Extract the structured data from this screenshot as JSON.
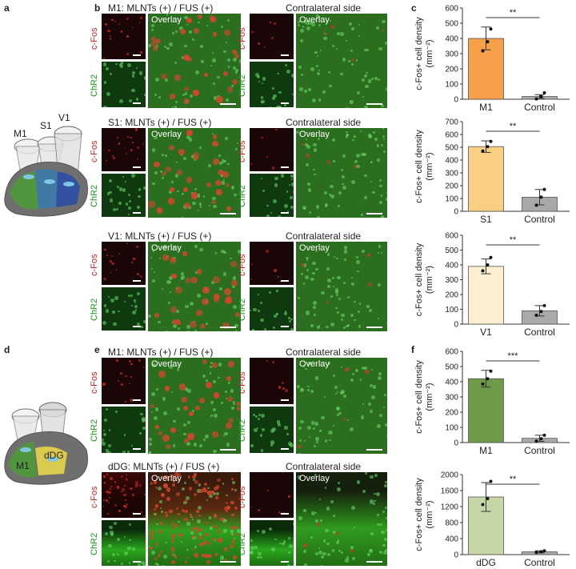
{
  "panel_letters": {
    "a": "a",
    "b": "b",
    "c": "c",
    "d": "d",
    "e": "e",
    "f": "f"
  },
  "brain_labels": {
    "m1": "M1",
    "s1": "S1",
    "v1": "V1",
    "m1_d": "M1",
    "ddg": "dDG"
  },
  "rows": [
    {
      "title": "M1: MLNTs (+) / FUS (+)",
      "contra": "Contralateral side"
    },
    {
      "title": "S1: MLNTs (+) / FUS (+)",
      "contra": "Contralateral side"
    },
    {
      "title": "V1: MLNTs (+) / FUS (+)",
      "contra": "Contralateral side"
    },
    {
      "title": "M1: MLNTs (+) / FUS (+)",
      "contra": "Contralateral side"
    },
    {
      "title": "dDG: MLNTs (+) / FUS (+)",
      "contra": "Contralateral side"
    }
  ],
  "tile_labels": {
    "cfos": "c-Fos",
    "chr2": "ChR2",
    "overlay": "Overlay"
  },
  "colors": {
    "m1": "#f6a04a",
    "s1": "#f9cf84",
    "v1": "#fdf0d2",
    "m1_d": "#6e9a4a",
    "ddg": "#c6d6a6",
    "control": "#a9a9a9"
  },
  "chart_data": [
    {
      "type": "bar",
      "ylabel": "c-Fos+ cell density (mm⁻²)",
      "categories": [
        "M1",
        "Control"
      ],
      "values": [
        400,
        18
      ],
      "errors": [
        75,
        12
      ],
      "ylim": [
        0,
        600
      ],
      "yticks": [
        0,
        100,
        200,
        300,
        400,
        500,
        600
      ],
      "significance": "**",
      "points": [
        [
          318,
          378,
          462
        ],
        [
          2,
          18,
          42
        ]
      ]
    },
    {
      "type": "bar",
      "ylabel": "c-Fos+ cell density (mm⁻²)",
      "categories": [
        "S1",
        "Control"
      ],
      "values": [
        505,
        110
      ],
      "errors": [
        45,
        60
      ],
      "ylim": [
        0,
        700
      ],
      "yticks": [
        0,
        100,
        200,
        300,
        400,
        500,
        600,
        700
      ],
      "significance": "**",
      "points": [
        [
          470,
          505,
          545
        ],
        [
          48,
          110,
          170
        ]
      ]
    },
    {
      "type": "bar",
      "ylabel": "c-Fos+ cell density (mm⁻²)",
      "categories": [
        "V1",
        "Control"
      ],
      "values": [
        390,
        90
      ],
      "errors": [
        50,
        35
      ],
      "ylim": [
        0,
        600
      ],
      "yticks": [
        0,
        100,
        200,
        300,
        400,
        500,
        600
      ],
      "significance": "**",
      "points": [
        [
          360,
          400,
          450
        ],
        [
          60,
          85,
          125
        ]
      ]
    },
    {
      "type": "bar",
      "ylabel": "c-Fos+ cell density (mm⁻²)",
      "categories": [
        "M1",
        "Control"
      ],
      "values": [
        420,
        28
      ],
      "errors": [
        55,
        20
      ],
      "ylim": [
        0,
        600
      ],
      "yticks": [
        0,
        100,
        200,
        300,
        400,
        500,
        600
      ],
      "significance": "***",
      "points": [
        [
          385,
          420,
          470
        ],
        [
          10,
          25,
          48
        ]
      ]
    },
    {
      "type": "bar",
      "ylabel": "c-Fos+ cell density (mm⁻²)",
      "categories": [
        "dDG",
        "Control"
      ],
      "values": [
        1440,
        70
      ],
      "errors": [
        360,
        25
      ],
      "ylim": [
        0,
        2000
      ],
      "yticks": [
        0,
        400,
        800,
        1200,
        1600,
        2000
      ],
      "significance": "**",
      "points": [
        [
          1250,
          1400,
          1830
        ],
        [
          55,
          70,
          95
        ]
      ]
    }
  ]
}
